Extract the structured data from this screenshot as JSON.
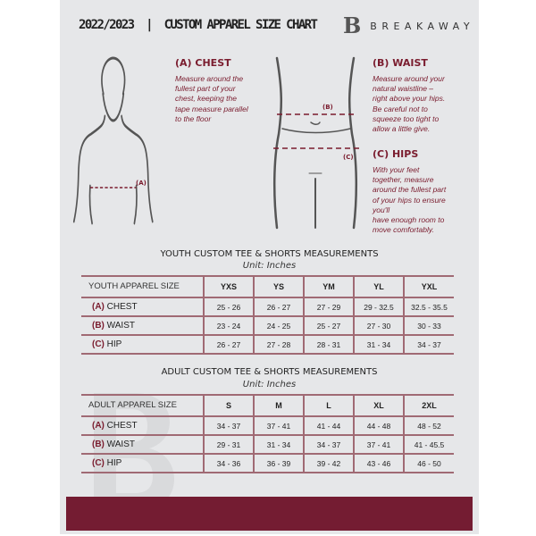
{
  "header": {
    "title": "2022/2023  |  CUSTOM APPAREL SIZE CHART",
    "brand": "BREAKAWAY",
    "brand_mark": "B"
  },
  "guide": {
    "chest": {
      "heading": "(A) CHEST",
      "marker": "(A)",
      "lines": [
        "Measure around the",
        "fullest part of your",
        "chest, keeping the",
        "tape measure parallel",
        "to the floor"
      ]
    },
    "waist": {
      "heading": "(B) WAIST",
      "marker": "(B)",
      "lines": [
        "Measure around your",
        "natural waistline –",
        "right above your hips.",
        "Be careful not to",
        "squeeze too tight to",
        "allow a little give."
      ]
    },
    "hips": {
      "heading": "(C) HIPS",
      "marker": "(C)",
      "lines": [
        "With your feet",
        "together, measure",
        "around the fullest part",
        "of your hips to ensure",
        "you'll",
        "have enough room to",
        "move comfortably."
      ]
    }
  },
  "youth": {
    "title": "YOUTH CUSTOM TEE & SHORTS MEASUREMENTS",
    "unit": "Unit: Inches",
    "header": "YOUTH APPAREL SIZE",
    "sizes": [
      "YXS",
      "YS",
      "YM",
      "YL",
      "YXL"
    ],
    "rows": [
      {
        "tag": "(A)",
        "name": "CHEST",
        "values": [
          "25 - 26",
          "26 - 27",
          "27 - 29",
          "29 - 32.5",
          "32.5 - 35.5"
        ]
      },
      {
        "tag": "(B)",
        "name": "WAIST",
        "values": [
          "23 - 24",
          "24 - 25",
          "25 - 27",
          "27 - 30",
          "30 - 33"
        ]
      },
      {
        "tag": "(C)",
        "name": "HIP",
        "values": [
          "26 - 27",
          "27 - 28",
          "28 - 31",
          "31 - 34",
          "34 - 37"
        ]
      }
    ]
  },
  "adult": {
    "title": "ADULT CUSTOM TEE & SHORTS MEASUREMENTS",
    "unit": "Unit: Inches",
    "header": "ADULT APPAREL SIZE",
    "sizes": [
      "S",
      "M",
      "L",
      "XL",
      "2XL"
    ],
    "rows": [
      {
        "tag": "(A)",
        "name": "CHEST",
        "values": [
          "34 - 37",
          "37 - 41",
          "41 - 44",
          "44 - 48",
          "48 - 52"
        ]
      },
      {
        "tag": "(B)",
        "name": "WAIST",
        "values": [
          "29 - 31",
          "31 - 34",
          "34 - 37",
          "37 - 41",
          "41 - 45.5"
        ]
      },
      {
        "tag": "(C)",
        "name": "HIP",
        "values": [
          "34 - 36",
          "36 - 39",
          "39 - 42",
          "43 - 46",
          "46 - 50"
        ]
      }
    ]
  },
  "colors": {
    "accent": "#741c32",
    "paper": "#e6e7e9",
    "rule": "#a06a74"
  }
}
